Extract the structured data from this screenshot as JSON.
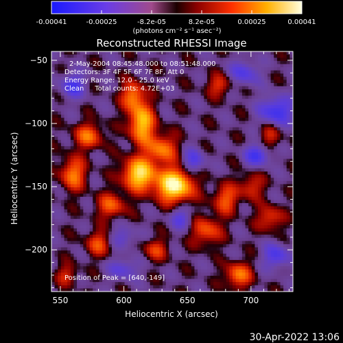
{
  "colorbar": {
    "ticks": [
      "-0.00041",
      "-0.00025",
      "-8.2e-05",
      "8.2e-05",
      "0.00025",
      "0.00041"
    ],
    "units_label": "(photons cm⁻² s⁻¹ asec⁻²)",
    "colors": [
      "#2b2bff",
      "#7a3fd6",
      "#a04a8c",
      "#c0392b",
      "#ff6a00",
      "#ffd000",
      "#ffffe0"
    ]
  },
  "annotations": {
    "time_range": "2-May-2004 08:45:48.000 to 08:51:48.000",
    "detectors": "Detectors: 3F 4F 5F 6F 7F 8F, Att 0",
    "energy": "Energy Range: 12.0 - 25.0 keV",
    "clean": "Clean     Total counts: 4.72E+03",
    "peak": "Position of Peak = [640,-149]"
  },
  "footer": {
    "timestamp": "30-Apr-2022 13:06"
  },
  "chart_data": {
    "type": "heatmap",
    "title": "Reconstructed RHESSI Image",
    "xlabel": "Heliocentric X (arcsec)",
    "ylabel": "Heliocentric Y (arcsec)",
    "xlim": [
      543,
      733
    ],
    "ylim": [
      -233,
      -43
    ],
    "xticks": [
      550,
      600,
      650,
      700
    ],
    "yticks": [
      -50,
      -100,
      -150,
      -200
    ],
    "zlim": [
      -0.00041,
      0.00041
    ],
    "colorscale": "Hot with blue negatives",
    "peak": {
      "x": 640,
      "y": -149
    },
    "sources": [
      {
        "x": 640,
        "y": -149,
        "amp": 1.0,
        "sx": 10,
        "sy": 9
      },
      {
        "x": 612,
        "y": -140,
        "amp": 0.85,
        "sx": 9,
        "sy": 9
      },
      {
        "x": 614,
        "y": -100,
        "amp": 0.75,
        "sx": 7,
        "sy": 11
      },
      {
        "x": 607,
        "y": -78,
        "amp": 0.55,
        "sx": 6,
        "sy": 8
      },
      {
        "x": 630,
        "y": -120,
        "amp": 0.55,
        "sx": 8,
        "sy": 8
      },
      {
        "x": 572,
        "y": -110,
        "amp": 0.5,
        "sx": 8,
        "sy": 7
      },
      {
        "x": 560,
        "y": -140,
        "amp": 0.55,
        "sx": 7,
        "sy": 9
      },
      {
        "x": 590,
        "y": -165,
        "amp": 0.45,
        "sx": 8,
        "sy": 7
      },
      {
        "x": 665,
        "y": -185,
        "amp": 0.45,
        "sx": 8,
        "sy": 8
      },
      {
        "x": 680,
        "y": -160,
        "amp": 0.45,
        "sx": 7,
        "sy": 8
      },
      {
        "x": 700,
        "y": -150,
        "amp": 0.35,
        "sx": 7,
        "sy": 7
      },
      {
        "x": 715,
        "y": -175,
        "amp": 0.4,
        "sx": 7,
        "sy": 7
      },
      {
        "x": 690,
        "y": -220,
        "amp": 0.55,
        "sx": 7,
        "sy": 7
      },
      {
        "x": 675,
        "y": -70,
        "amp": 0.35,
        "sx": 7,
        "sy": 6
      },
      {
        "x": 580,
        "y": -195,
        "amp": 0.4,
        "sx": 7,
        "sy": 7
      },
      {
        "x": 625,
        "y": -200,
        "amp": 0.35,
        "sx": 7,
        "sy": 6
      },
      {
        "x": 555,
        "y": -220,
        "amp": 0.3,
        "sx": 6,
        "sy": 6
      },
      {
        "x": 715,
        "y": -110,
        "amp": 0.3,
        "sx": 6,
        "sy": 7
      },
      {
        "x": 720,
        "y": -90,
        "amp": -0.55,
        "sx": 9,
        "sy": 8
      },
      {
        "x": 705,
        "y": -125,
        "amp": -0.5,
        "sx": 7,
        "sy": 6
      },
      {
        "x": 560,
        "y": -70,
        "amp": -0.45,
        "sx": 7,
        "sy": 7
      },
      {
        "x": 655,
        "y": -130,
        "amp": -0.4,
        "sx": 6,
        "sy": 7
      },
      {
        "x": 720,
        "y": -205,
        "amp": -0.45,
        "sx": 7,
        "sy": 7
      },
      {
        "x": 600,
        "y": -215,
        "amp": -0.35,
        "sx": 8,
        "sy": 6
      },
      {
        "x": 645,
        "y": -175,
        "amp": -0.35,
        "sx": 6,
        "sy": 6
      },
      {
        "x": 695,
        "y": -60,
        "amp": -0.4,
        "sx": 8,
        "sy": 7
      },
      {
        "x": 600,
        "y": -190,
        "amp": -0.3,
        "sx": 7,
        "sy": 6
      }
    ]
  }
}
